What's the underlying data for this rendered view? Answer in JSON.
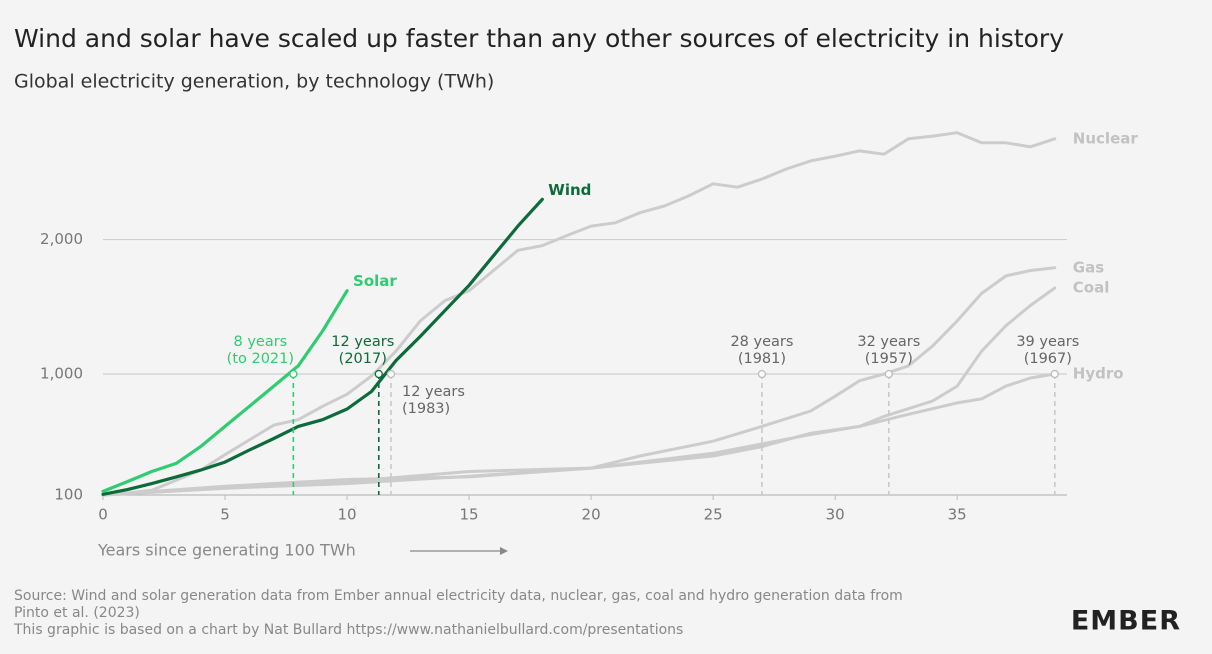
{
  "chart_data": {
    "type": "line",
    "title": "Wind and solar have scaled up faster than any other sources of electricity in history",
    "subtitle": "Global electricity generation, by technology (TWh)",
    "x_label": "Years since generating 100 TWh",
    "xlim": [
      0,
      39.5
    ],
    "xticks": [
      0,
      5,
      10,
      15,
      20,
      25,
      30,
      35
    ],
    "ylim": [
      100,
      2900
    ],
    "yticks": [
      100,
      {
        "value": 1000,
        "label": "1,000"
      },
      {
        "value": 2000,
        "label": "2,000"
      }
    ],
    "grid": true,
    "series": [
      {
        "name": "Nuclear",
        "color": "#cccccc",
        "x": [
          0,
          1,
          2,
          3,
          4,
          5,
          6,
          7,
          8,
          9,
          10,
          11,
          12,
          13,
          14,
          15,
          16,
          17,
          18,
          19,
          20,
          21,
          22,
          23,
          24,
          25,
          26,
          27,
          28,
          29,
          30,
          31,
          32,
          33,
          34,
          35,
          36,
          37,
          38,
          39
        ],
        "values": [
          100,
          115,
          135,
          210,
          285,
          400,
          510,
          620,
          660,
          760,
          850,
          985,
          1170,
          1395,
          1545,
          1620,
          1770,
          1920,
          1955,
          2030,
          2100,
          2125,
          2200,
          2250,
          2325,
          2415,
          2390,
          2450,
          2525,
          2585,
          2620,
          2660,
          2635,
          2750,
          2770,
          2795,
          2720,
          2720,
          2690,
          2750
        ]
      },
      {
        "name": "Gas",
        "color": "#cccccc",
        "x": [
          0,
          5,
          10,
          15,
          20,
          22,
          25,
          27,
          29,
          30,
          31,
          32,
          33,
          34,
          35,
          36,
          37,
          38,
          39
        ],
        "values": [
          100,
          150,
          200,
          275,
          300,
          390,
          500,
          610,
          725,
          835,
          950,
          1000,
          1060,
          1210,
          1395,
          1600,
          1730,
          1770,
          1790
        ]
      },
      {
        "name": "Coal",
        "color": "#cccccc",
        "x": [
          0,
          5,
          10,
          15,
          20,
          25,
          27,
          29,
          31,
          32,
          34,
          35,
          36,
          37,
          38,
          39
        ],
        "values": [
          100,
          165,
          215,
          235,
          300,
          390,
          460,
          560,
          610,
          685,
          800,
          910,
          1170,
          1360,
          1510,
          1640
        ]
      },
      {
        "name": "Hydro",
        "color": "#cccccc",
        "x": [
          0,
          5,
          10,
          15,
          20,
          25,
          27,
          29,
          31,
          33,
          35,
          36,
          37,
          38,
          39
        ],
        "values": [
          100,
          150,
          185,
          240,
          300,
          410,
          480,
          550,
          610,
          700,
          785,
          815,
          910,
          970,
          1000
        ]
      },
      {
        "name": "Wind",
        "color": "#0b6b3a",
        "x": [
          0,
          1,
          2,
          3,
          4,
          5,
          6,
          7,
          8,
          9,
          10,
          11,
          12,
          13,
          14,
          15,
          16,
          17,
          18
        ],
        "values": [
          105,
          140,
          185,
          235,
          285,
          345,
          435,
          520,
          610,
          660,
          740,
          870,
          1100,
          1280,
          1470,
          1660,
          1880,
          2100,
          2300
        ]
      },
      {
        "name": "Solar",
        "color": "#2fcc71",
        "x": [
          0,
          1,
          2,
          3,
          4,
          5,
          6,
          7,
          8,
          9,
          10
        ],
        "values": [
          127,
          200,
          275,
          335,
          460,
          610,
          760,
          910,
          1060,
          1320,
          1620
        ]
      }
    ],
    "annotations": [
      {
        "lines": [
          "8 years",
          "(to 2021)"
        ],
        "x": 7.8,
        "y": 1000,
        "color": "#2fcc71"
      },
      {
        "lines": [
          "12 years",
          "(2017)"
        ],
        "x": 11.3,
        "y": 1000,
        "color": "#0b6b3a"
      },
      {
        "lines": [
          "12 years",
          "(1983)"
        ],
        "x": 11.8,
        "y": 1000,
        "color": "#666666"
      },
      {
        "lines": [
          "28 years",
          "(1981)"
        ],
        "x": 27,
        "y": 1000,
        "color": "#666666"
      },
      {
        "lines": [
          "32 years",
          "(1957)"
        ],
        "x": 32.2,
        "y": 1000,
        "color": "#666666"
      },
      {
        "lines": [
          "39 years",
          "(1967)"
        ],
        "x": 39,
        "y": 1000,
        "color": "#666666"
      }
    ],
    "source": [
      "Source: Wind and solar generation data from Ember annual electricity data, nuclear, gas, coal and hydro generation data from",
      "Pinto et al. (2023)",
      "This graphic is based on a chart by Nat Bullard https://www.nathanielbullard.com/presentations"
    ],
    "logo": "EMBER"
  }
}
